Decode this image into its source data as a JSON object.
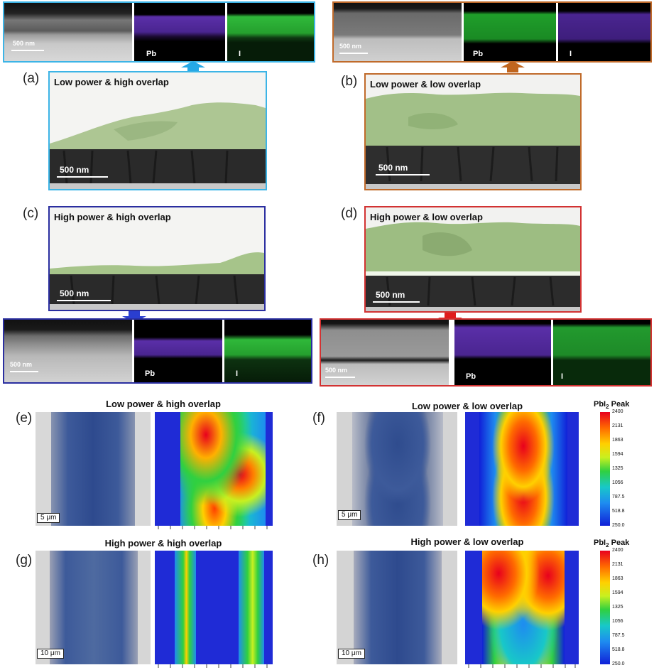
{
  "panels": {
    "a": {
      "letter": "(a)",
      "title": "Low power & high overlap",
      "scale": "500 nm",
      "border": "#3cb4e6"
    },
    "b": {
      "letter": "(b)",
      "title": "Low power & low overlap",
      "scale": "500 nm",
      "border": "#c06a2a"
    },
    "c": {
      "letter": "(c)",
      "title": "High power & high overlap",
      "scale": "500 nm",
      "border": "#2a2ea0"
    },
    "d": {
      "letter": "(d)",
      "title": "High power & low overlap",
      "scale": "500 nm",
      "border": "#d23232"
    },
    "e": {
      "letter": "(e)",
      "title": "Low power & high overlap",
      "scale": "5 μm"
    },
    "f": {
      "letter": "(f)",
      "title": "Low power & low overlap",
      "scale": "5 μm"
    },
    "g": {
      "letter": "(g)",
      "title": "High power & high overlap",
      "scale": "10 μm"
    },
    "h": {
      "letter": "(h)",
      "title": "High power & low overlap",
      "scale": "10 μm"
    }
  },
  "eds": {
    "a": {
      "scale": "500 nm",
      "ch1": "Pb",
      "ch2": "I"
    },
    "b": {
      "scale": "500 nm",
      "ch1": "Pb",
      "ch2": "I"
    },
    "c": {
      "scale": "500 nm",
      "ch1": "Pb",
      "ch2": "I"
    },
    "d": {
      "scale": "500 nm",
      "ch1": "Pb",
      "ch2": "I"
    }
  },
  "colorbar": {
    "title_prefix": "PbI",
    "title_sub": "2",
    "title_suffix": " Peak",
    "labels": [
      "2400",
      "2131",
      "1863",
      "1594",
      "1325",
      "1056",
      "787.5",
      "518.8",
      "250.0"
    ]
  },
  "colors": {
    "pb_map": "#5a2fa8",
    "i_map": "#2fb83a",
    "film_green": "#a6c48a"
  }
}
